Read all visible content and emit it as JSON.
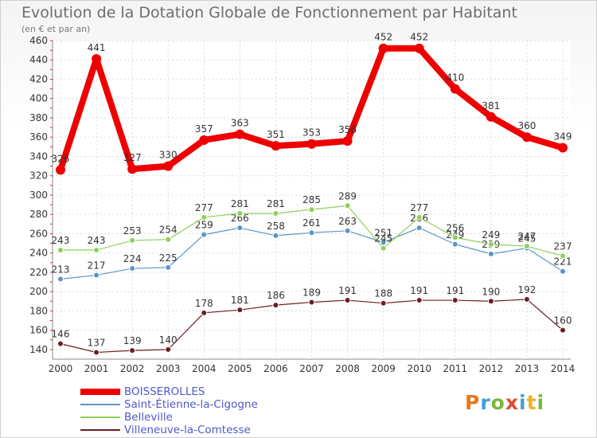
{
  "chart_data": {
    "type": "line",
    "title": "Evolution de la Dotation Globale de Fonctionnement par Habitant",
    "subtitle": "(en € et par an)",
    "x": [
      "2000",
      "2001",
      "2002",
      "2003",
      "2004",
      "2005",
      "2006",
      "2007",
      "2008",
      "2009",
      "2010",
      "2011",
      "2012",
      "2013",
      "2014"
    ],
    "ylim": [
      130,
      460
    ],
    "yticks": [
      140,
      160,
      180,
      200,
      220,
      240,
      260,
      280,
      300,
      320,
      340,
      360,
      380,
      400,
      420,
      440,
      460
    ],
    "grid": true,
    "series": [
      {
        "name": "Villeneuve-la-Comtesse",
        "color": "#6b1f24",
        "values": [
          146,
          137,
          139,
          140,
          178,
          181,
          186,
          189,
          191,
          188,
          191,
          191,
          190,
          192,
          160
        ]
      },
      {
        "name": "Saint-Étienne-la-Cigogne",
        "color": "#5b95c9",
        "values": [
          213,
          217,
          224,
          225,
          259,
          266,
          258,
          261,
          263,
          251,
          266,
          249,
          239,
          245,
          221
        ]
      },
      {
        "name": "Belleville",
        "color": "#8fd05a",
        "values": [
          243,
          243,
          253,
          254,
          277,
          281,
          281,
          285,
          289,
          245,
          277,
          256,
          249,
          247,
          237
        ]
      },
      {
        "name": "BOISSEROLLES",
        "color": "#ee0000",
        "values": [
          326,
          441,
          327,
          330,
          357,
          363,
          351,
          353,
          356,
          452,
          452,
          410,
          381,
          360,
          349
        ]
      }
    ],
    "legend_order": [
      "BOISSEROLLES",
      "Saint-Étienne-la-Cigogne",
      "Belleville",
      "Villeneuve-la-Comtesse"
    ]
  },
  "logo": {
    "text": "Proxiti",
    "colors": [
      "#e7781d",
      "#3da0d8",
      "#79b83a",
      "#e24b2a",
      "#3da0d8",
      "#f0b020",
      "#79b83a"
    ]
  }
}
